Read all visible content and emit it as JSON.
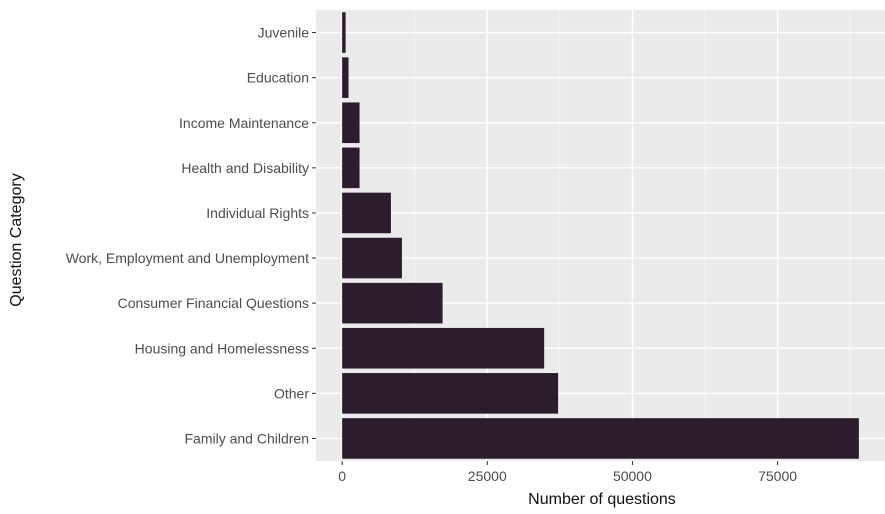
{
  "chart_data": {
    "type": "bar",
    "orientation": "horizontal",
    "title": "",
    "xlabel": "Number of questions",
    "ylabel": "Question Category",
    "categories": [
      "Juvenile",
      "Education",
      "Income Maintenance",
      "Health and Disability",
      "Individual Rights",
      "Work, Employment and Unemployment",
      "Consumer Financial Questions",
      "Housing and Homelessness",
      "Other",
      "Family and Children"
    ],
    "values": [
      600,
      1100,
      3000,
      3000,
      8400,
      10300,
      17300,
      34800,
      37200,
      89000
    ],
    "xlim": [
      -4500,
      93500
    ],
    "xticks": [
      0,
      25000,
      50000,
      75000
    ],
    "xtick_labels": [
      "0",
      "25000",
      "50000",
      "75000"
    ],
    "grid": true,
    "legend": "none",
    "colors": {
      "bar": "#2b1d2c",
      "panel": "#ebebeb",
      "grid": "#ffffff",
      "text": "#4d4d4d"
    }
  }
}
